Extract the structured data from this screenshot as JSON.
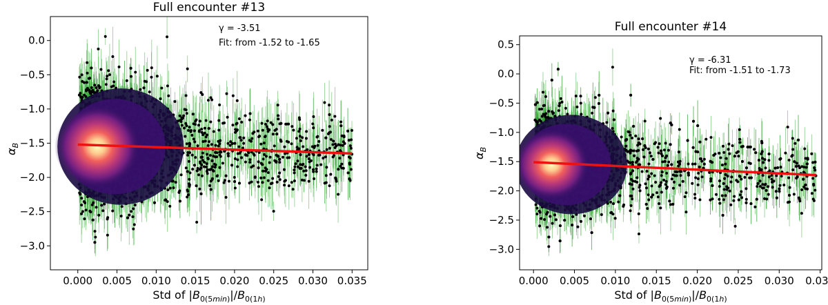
{
  "chart_data": [
    {
      "type": "scatter",
      "title": "Full encounter #13",
      "xlabel": "Std of |B0(5min)|/B0(1h)",
      "ylabel": "αB",
      "xlim": [
        -0.0035,
        0.037
      ],
      "ylim": [
        -3.35,
        0.35
      ],
      "xticks": [
        "0.000",
        "0.005",
        "0.010",
        "0.015",
        "0.020",
        "0.025",
        "0.030",
        "0.035"
      ],
      "xtick_values": [
        0.0,
        0.005,
        0.01,
        0.015,
        0.02,
        0.025,
        0.03,
        0.035
      ],
      "yticks": [
        "0.0",
        "−0.5",
        "−1.0",
        "−1.5",
        "−2.0",
        "−2.5",
        "−3.0"
      ],
      "ytick_values": [
        0.0,
        -0.5,
        -1.0,
        -1.5,
        -2.0,
        -2.5,
        -3.0
      ],
      "annotation": {
        "gamma": "γ = -3.51",
        "fit": "Fit: from -1.52 to -1.65"
      },
      "fit_line": {
        "x": [
          0.0,
          0.035
        ],
        "y": [
          -1.52,
          -1.65
        ],
        "color": "#ee1111"
      },
      "cloud": {
        "x_max": 0.035,
        "dense_until": 0.013,
        "center_x": 0.0025,
        "center_y": -1.55,
        "spread_y_start": 0.8,
        "spread_y_end": 0.45
      },
      "colors": {
        "points": "#000000",
        "errorbars": "#2ca02c",
        "density": [
          "#1b0c41",
          "#51127c",
          "#b73779",
          "#fc8961",
          "#fcfdbf"
        ]
      }
    },
    {
      "type": "scatter",
      "title": "Full encounter #14",
      "xlabel": "Std of |B0(5min)|/B0(1h)",
      "ylabel": "αB",
      "xlim": [
        -0.0017,
        0.0352
      ],
      "ylim": [
        -3.35,
        0.65
      ],
      "xticks": [
        "0.000",
        "0.005",
        "0.010",
        "0.015",
        "0.020",
        "0.025",
        "0.030",
        "0.035"
      ],
      "xtick_values": [
        0.0,
        0.005,
        0.01,
        0.015,
        0.02,
        0.025,
        0.03,
        0.035
      ],
      "yticks": [
        "0.5",
        "0.0",
        "−0.5",
        "−1.0",
        "−1.5",
        "−2.0",
        "−2.5",
        "−3.0"
      ],
      "ytick_values": [
        0.5,
        0.0,
        -0.5,
        -1.0,
        -1.5,
        -2.0,
        -2.5,
        -3.0
      ],
      "annotation": {
        "gamma": "γ = -6.31",
        "fit": "Fit: from -1.51 to -1.73"
      },
      "fit_line": {
        "x": [
          0.0,
          0.0345
        ],
        "y": [
          -1.51,
          -1.73
        ],
        "color": "#ee1111"
      },
      "cloud": {
        "x_max": 0.0345,
        "dense_until": 0.011,
        "center_x": 0.0022,
        "center_y": -1.55,
        "spread_y_start": 0.8,
        "spread_y_end": 0.5
      },
      "colors": {
        "points": "#000000",
        "errorbars": "#2ca02c",
        "density": [
          "#1b0c41",
          "#51127c",
          "#b73779",
          "#fc8961",
          "#fcfdbf"
        ]
      }
    }
  ]
}
